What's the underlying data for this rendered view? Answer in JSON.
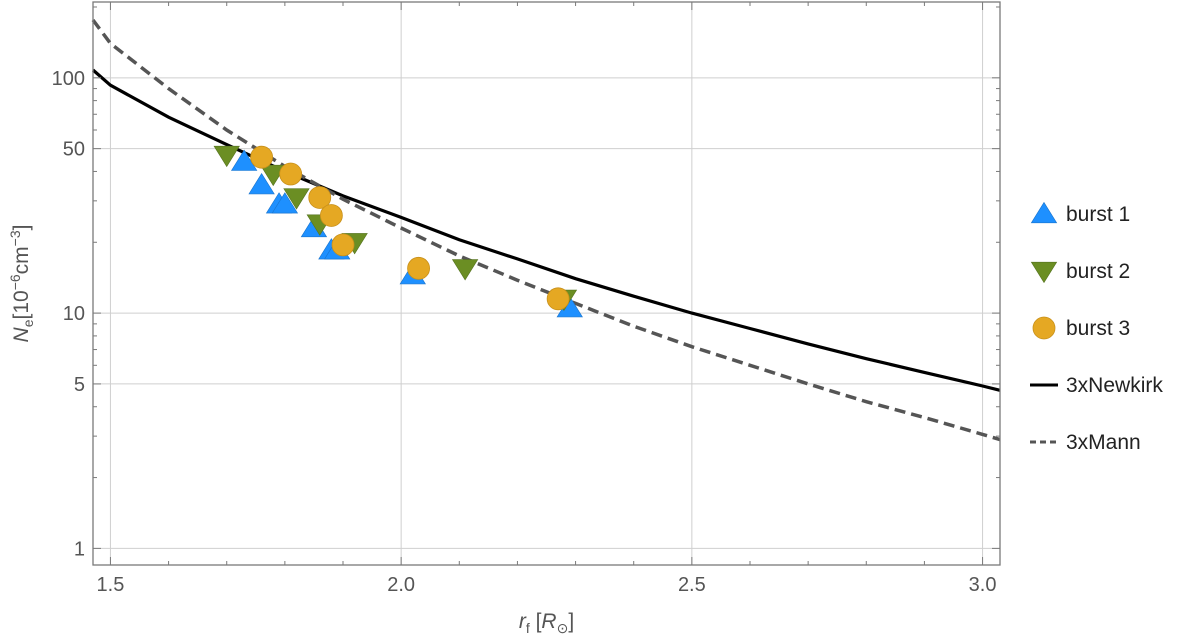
{
  "chart_data": {
    "type": "scatter",
    "xlabel": "r_f [R_⊙]",
    "ylabel": "N_e [10^-6 cm^-3]",
    "x_scale": "linear",
    "y_scale": "log",
    "xlim": [
      1.47,
      3.03
    ],
    "ylim": [
      0.85,
      210
    ],
    "x_ticks": [
      1.5,
      2.0,
      2.5,
      3.0
    ],
    "x_tick_labels": [
      "1.5",
      "2.0",
      "2.5",
      "3.0"
    ],
    "y_ticks": [
      1,
      5,
      10,
      50,
      100
    ],
    "y_tick_labels": [
      "1",
      "5",
      "10",
      "50",
      "100"
    ],
    "grid": true,
    "legend_position": "right",
    "series": [
      {
        "name": "burst 1",
        "marker": "triangle-up",
        "color": "#1e90ff",
        "points": [
          {
            "x": 1.73,
            "y": 44
          },
          {
            "x": 1.76,
            "y": 35
          },
          {
            "x": 1.79,
            "y": 29
          },
          {
            "x": 1.8,
            "y": 29
          },
          {
            "x": 1.85,
            "y": 23
          },
          {
            "x": 1.88,
            "y": 18.5
          },
          {
            "x": 1.89,
            "y": 18.5
          },
          {
            "x": 2.02,
            "y": 14.5
          },
          {
            "x": 2.29,
            "y": 10.5
          }
        ]
      },
      {
        "name": "burst 2",
        "marker": "triangle-down",
        "color": "#6b8e23",
        "points": [
          {
            "x": 1.7,
            "y": 47
          },
          {
            "x": 1.78,
            "y": 39
          },
          {
            "x": 1.82,
            "y": 31
          },
          {
            "x": 1.86,
            "y": 24
          },
          {
            "x": 1.92,
            "y": 20
          },
          {
            "x": 2.11,
            "y": 15.5
          },
          {
            "x": 2.28,
            "y": 11.5
          }
        ]
      },
      {
        "name": "burst 3",
        "marker": "circle",
        "color": "#e5a823",
        "points": [
          {
            "x": 1.76,
            "y": 46
          },
          {
            "x": 1.81,
            "y": 39
          },
          {
            "x": 1.86,
            "y": 31
          },
          {
            "x": 1.88,
            "y": 26
          },
          {
            "x": 1.9,
            "y": 19.5
          },
          {
            "x": 2.03,
            "y": 15.5
          },
          {
            "x": 2.27,
            "y": 11.5
          }
        ]
      },
      {
        "name": "3xNewkirk",
        "line": "solid",
        "color": "#000000",
        "x": [
          1.47,
          1.5,
          1.6,
          1.7,
          1.8,
          1.9,
          2.0,
          2.1,
          2.2,
          2.3,
          2.4,
          2.5,
          2.6,
          2.7,
          2.8,
          2.9,
          3.0,
          3.03
        ],
        "y": [
          108,
          93,
          68,
          52,
          40,
          31.5,
          25.5,
          20.5,
          17,
          14,
          11.8,
          10,
          8.6,
          7.4,
          6.4,
          5.6,
          4.9,
          4.7
        ]
      },
      {
        "name": "3xMann",
        "line": "dashed",
        "color": "#555555",
        "x": [
          1.47,
          1.5,
          1.6,
          1.7,
          1.8,
          1.9,
          2.0,
          2.1,
          2.2,
          2.3,
          2.4,
          2.5,
          2.6,
          2.7,
          2.8,
          2.9,
          3.0,
          3.03
        ],
        "y": [
          176,
          140,
          90,
          60,
          42,
          30.5,
          23,
          17.5,
          13.8,
          11,
          8.8,
          7.2,
          6,
          5,
          4.2,
          3.6,
          3.05,
          2.9
        ]
      }
    ]
  },
  "colors": {
    "grid": "#cfcfcf",
    "frame": "#7a7a7a",
    "text": "#555555"
  }
}
